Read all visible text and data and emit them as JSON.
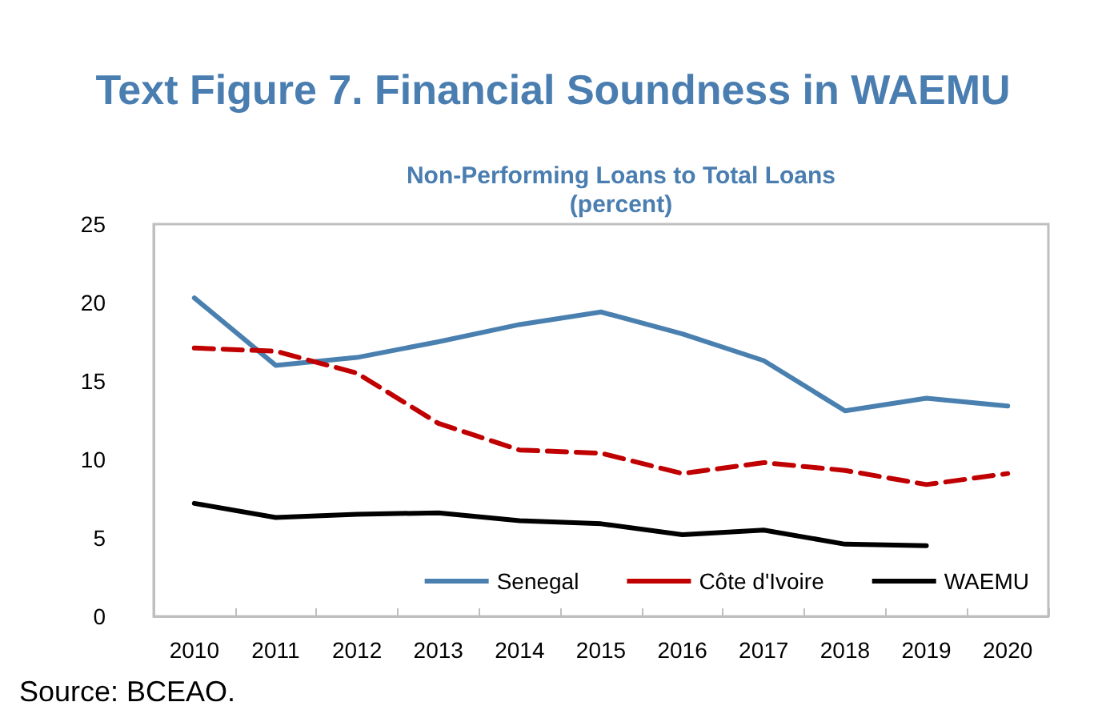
{
  "chart_data": {
    "type": "line",
    "title": "Text Figure 7. Financial Soundness in WAEMU",
    "subtitle": "Non-Performing Loans to Total Loans\n(percent)",
    "categories": [
      "2010",
      "2011",
      "2012",
      "2013",
      "2014",
      "2015",
      "2016",
      "2017",
      "2018",
      "2019",
      "2020"
    ],
    "series": [
      {
        "name": "Senegal",
        "color": "#4a80b0",
        "values": [
          20.3,
          16.0,
          16.5,
          17.5,
          18.6,
          19.4,
          18.0,
          16.3,
          13.1,
          13.9,
          13.4
        ]
      },
      {
        "name": "Côte d'Ivoire",
        "color": "#c00000",
        "line_style": "dashed",
        "values": [
          17.1,
          16.9,
          15.5,
          12.3,
          10.6,
          10.4,
          9.1,
          9.8,
          9.3,
          8.4,
          9.1
        ]
      },
      {
        "name": "WAEMU",
        "color": "#000000",
        "values": [
          7.2,
          6.3,
          6.5,
          6.6,
          6.1,
          5.9,
          5.2,
          5.5,
          4.6,
          4.5,
          null
        ]
      }
    ],
    "ylim": [
      0,
      25
    ],
    "yticks": [
      0,
      5,
      10,
      15,
      20,
      25
    ],
    "grid": false,
    "legend": "bottom right",
    "marker": "none",
    "line_style": "solid",
    "annotations": [
      "Source: BCEAO."
    ]
  }
}
